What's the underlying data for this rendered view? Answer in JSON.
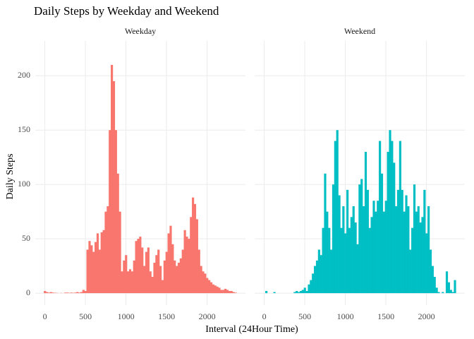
{
  "chart_data": {
    "type": "bar",
    "title": "Daily Steps by Weekday and Weekend",
    "x_label": "Interval (24Hour Time)",
    "y_label": "Daily Steps",
    "x": [
      0,
      25,
      50,
      75,
      100,
      125,
      150,
      175,
      200,
      225,
      250,
      275,
      300,
      325,
      350,
      375,
      400,
      425,
      450,
      475,
      500,
      525,
      550,
      575,
      600,
      625,
      650,
      675,
      700,
      725,
      750,
      775,
      800,
      825,
      850,
      875,
      900,
      925,
      950,
      975,
      1000,
      1025,
      1050,
      1075,
      1100,
      1125,
      1150,
      1175,
      1200,
      1225,
      1250,
      1275,
      1300,
      1325,
      1350,
      1375,
      1400,
      1425,
      1450,
      1475,
      1500,
      1525,
      1550,
      1575,
      1600,
      1625,
      1650,
      1675,
      1700,
      1725,
      1750,
      1775,
      1800,
      1825,
      1850,
      1875,
      1900,
      1925,
      1950,
      1975,
      2000,
      2025,
      2050,
      2075,
      2100,
      2125,
      2150,
      2175,
      2200,
      2225,
      2250,
      2275,
      2300,
      2325,
      2350
    ],
    "series": [
      {
        "name": "Weekday",
        "color": "#f8766d",
        "values": [
          2,
          1,
          0.5,
          1,
          0.5,
          0.3,
          0.2,
          0,
          0.2,
          0,
          0.5,
          0.5,
          0.3,
          0.5,
          0.3,
          0.5,
          1,
          0.5,
          1,
          3,
          2,
          40,
          48,
          44,
          38,
          47,
          55,
          40,
          56,
          58,
          75,
          80,
          150,
          210,
          195,
          150,
          110,
          75,
          20,
          30,
          35,
          20,
          22,
          20,
          30,
          48,
          50,
          52,
          42,
          25,
          38,
          42,
          20,
          15,
          28,
          35,
          40,
          25,
          12,
          30,
          38,
          55,
          62,
          45,
          30,
          25,
          28,
          32,
          40,
          58,
          52,
          50,
          70,
          88,
          82,
          68,
          40,
          25,
          20,
          18,
          14,
          12,
          10,
          8,
          7,
          6,
          5,
          3,
          3,
          4,
          3,
          2,
          2,
          1,
          0.5
        ]
      },
      {
        "name": "Weekend",
        "color": "#00bfc4",
        "values": [
          0,
          2,
          0,
          0,
          0,
          1,
          0,
          0,
          0,
          0,
          0,
          0,
          0,
          0,
          0,
          1,
          2,
          1,
          2,
          3,
          5,
          2,
          8,
          12,
          18,
          25,
          30,
          40,
          35,
          60,
          110,
          75,
          60,
          40,
          100,
          140,
          150,
          90,
          60,
          80,
          55,
          95,
          60,
          70,
          80,
          65,
          45,
          100,
          105,
          80,
          130,
          95,
          60,
          70,
          85,
          75,
          85,
          140,
          110,
          75,
          85,
          130,
          150,
          140,
          120,
          80,
          95,
          140,
          95,
          75,
          90,
          80,
          40,
          60,
          100,
          75,
          80,
          65,
          70,
          95,
          55,
          80,
          40,
          25,
          15,
          5,
          1,
          0,
          1,
          0,
          20,
          10,
          3,
          1,
          12
        ]
      }
    ],
    "xlim": [
      -118,
      2473
    ],
    "ylim": [
      -11,
      232
    ],
    "xticks": [
      0,
      500,
      1000,
      1500,
      2000
    ],
    "yticks": [
      0,
      50,
      100,
      150,
      200
    ],
    "grid": true
  }
}
